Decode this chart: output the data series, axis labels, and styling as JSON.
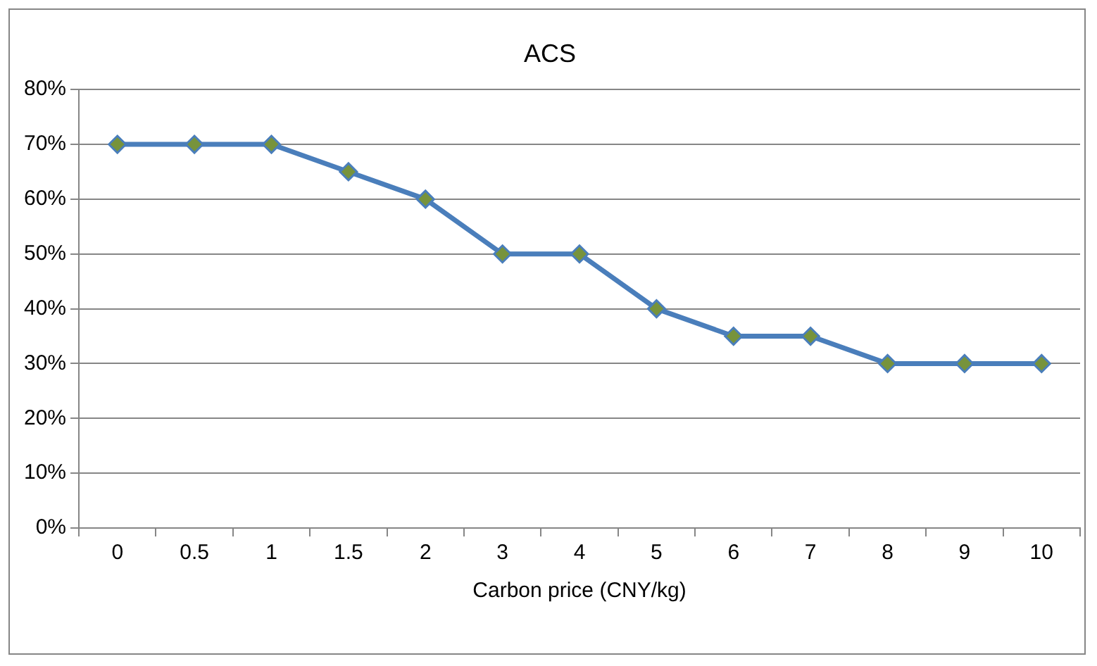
{
  "chart_data": {
    "type": "line",
    "title": "ACS",
    "xlabel": "Carbon price (CNY/kg)",
    "categories": [
      "0",
      "0.5",
      "1",
      "1.5",
      "2",
      "3",
      "4",
      "5",
      "6",
      "7",
      "8",
      "9",
      "10"
    ],
    "series": [
      {
        "color": "#4a7ebb",
        "colors": [
          "#77933c",
          "#77933c",
          "#77933c",
          "#77933c",
          "#77933c",
          "#77933c",
          "#77933c",
          "#77933c",
          "#77933c",
          "#77933c",
          "#77933c",
          "#77933c",
          "#77933c"
        ],
        "values": [
          70,
          70,
          70,
          65,
          60,
          50,
          50,
          40,
          35,
          35,
          30,
          30,
          30
        ]
      }
    ],
    "ylim": [
      0,
      80
    ],
    "yticks": [
      {
        "value": 0,
        "label": "0%"
      },
      {
        "value": 10,
        "label": "10%"
      },
      {
        "value": 20,
        "label": "20%"
      },
      {
        "value": 30,
        "label": "30%"
      },
      {
        "value": 40,
        "label": "40%"
      },
      {
        "value": 50,
        "label": "50%"
      },
      {
        "value": 60,
        "label": "60%"
      },
      {
        "value": 70,
        "label": "70%"
      },
      {
        "value": 80,
        "label": "80%"
      }
    ],
    "grid": "y",
    "legend": false,
    "marker": "diamond",
    "line_style": "solid"
  }
}
